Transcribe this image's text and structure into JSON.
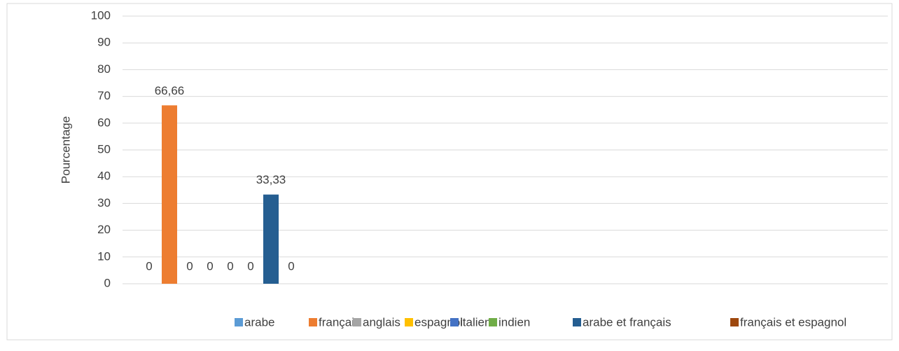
{
  "chart_data": {
    "type": "bar",
    "y_label": "Pourcentage",
    "categories": [
      null
    ],
    "series": [
      {
        "name": "arabe",
        "color": "#5b9bd5",
        "values": [
          0
        ]
      },
      {
        "name": "français",
        "color": "#ed7d31",
        "values": [
          66.66
        ],
        "value_labels": [
          "66,66"
        ]
      },
      {
        "name": "anglais",
        "color": "#a5a5a5",
        "values": [
          0
        ]
      },
      {
        "name": "espagnol",
        "color": "#ffc000",
        "values": [
          0
        ]
      },
      {
        "name": "italien",
        "color": "#4472c4",
        "values": [
          0
        ]
      },
      {
        "name": "indien",
        "color": "#70ad47",
        "values": [
          0
        ]
      },
      {
        "name": "arabe et français",
        "color": "#255e91",
        "values": [
          33.33
        ],
        "value_labels": [
          "33,33"
        ]
      },
      {
        "name": "français et espagnol",
        "color": "#9e480e",
        "values": [
          0
        ]
      }
    ],
    "ylim": [
      0,
      100
    ],
    "yticks": [
      0,
      10,
      20,
      30,
      40,
      50,
      60,
      70,
      80,
      90,
      100
    ],
    "grid": true,
    "legend": "bottom"
  }
}
